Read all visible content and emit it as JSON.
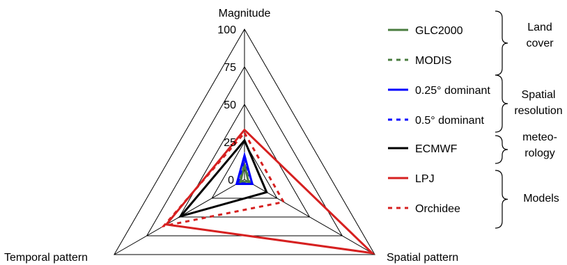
{
  "chart_data": {
    "type": "radar",
    "axes": [
      "Magnitude",
      "Spatial pattern",
      "Temporal pattern"
    ],
    "rlim": [
      0,
      100
    ],
    "ticks": [
      0,
      25,
      50,
      75,
      100
    ],
    "tick_labels": [
      "0",
      "25",
      "50",
      "75",
      "100"
    ],
    "grid": true,
    "legend_position": "right",
    "series": [
      {
        "name": "GLC2000",
        "values": [
          10,
          3,
          3
        ],
        "color": "#4a7c3f",
        "dash": false
      },
      {
        "name": "MODIS",
        "values": [
          10,
          4,
          4
        ],
        "color": "#4a7c3f",
        "dash": true
      },
      {
        "name": "0.25° dominant",
        "values": [
          16,
          6,
          6
        ],
        "color": "#0000ff",
        "dash": false
      },
      {
        "name": "0.5° dominant",
        "values": [
          14,
          6,
          5
        ],
        "color": "#0000ff",
        "dash": true
      },
      {
        "name": "ECMWF",
        "values": [
          26,
          17,
          49
        ],
        "color": "#000000",
        "dash": false
      },
      {
        "name": "LPJ",
        "values": [
          33,
          98,
          60
        ],
        "color": "#d62020",
        "dash": false
      },
      {
        "name": "Orchidee",
        "values": [
          31,
          30,
          62
        ],
        "color": "#d62020",
        "dash": true
      }
    ],
    "groups": [
      {
        "lines": [
          "Land",
          "cover"
        ]
      },
      {
        "lines": [
          "Spatial",
          "resolution"
        ]
      },
      {
        "lines": [
          "meteo-",
          "rology"
        ]
      },
      {
        "lines": [
          "Models"
        ]
      }
    ]
  }
}
